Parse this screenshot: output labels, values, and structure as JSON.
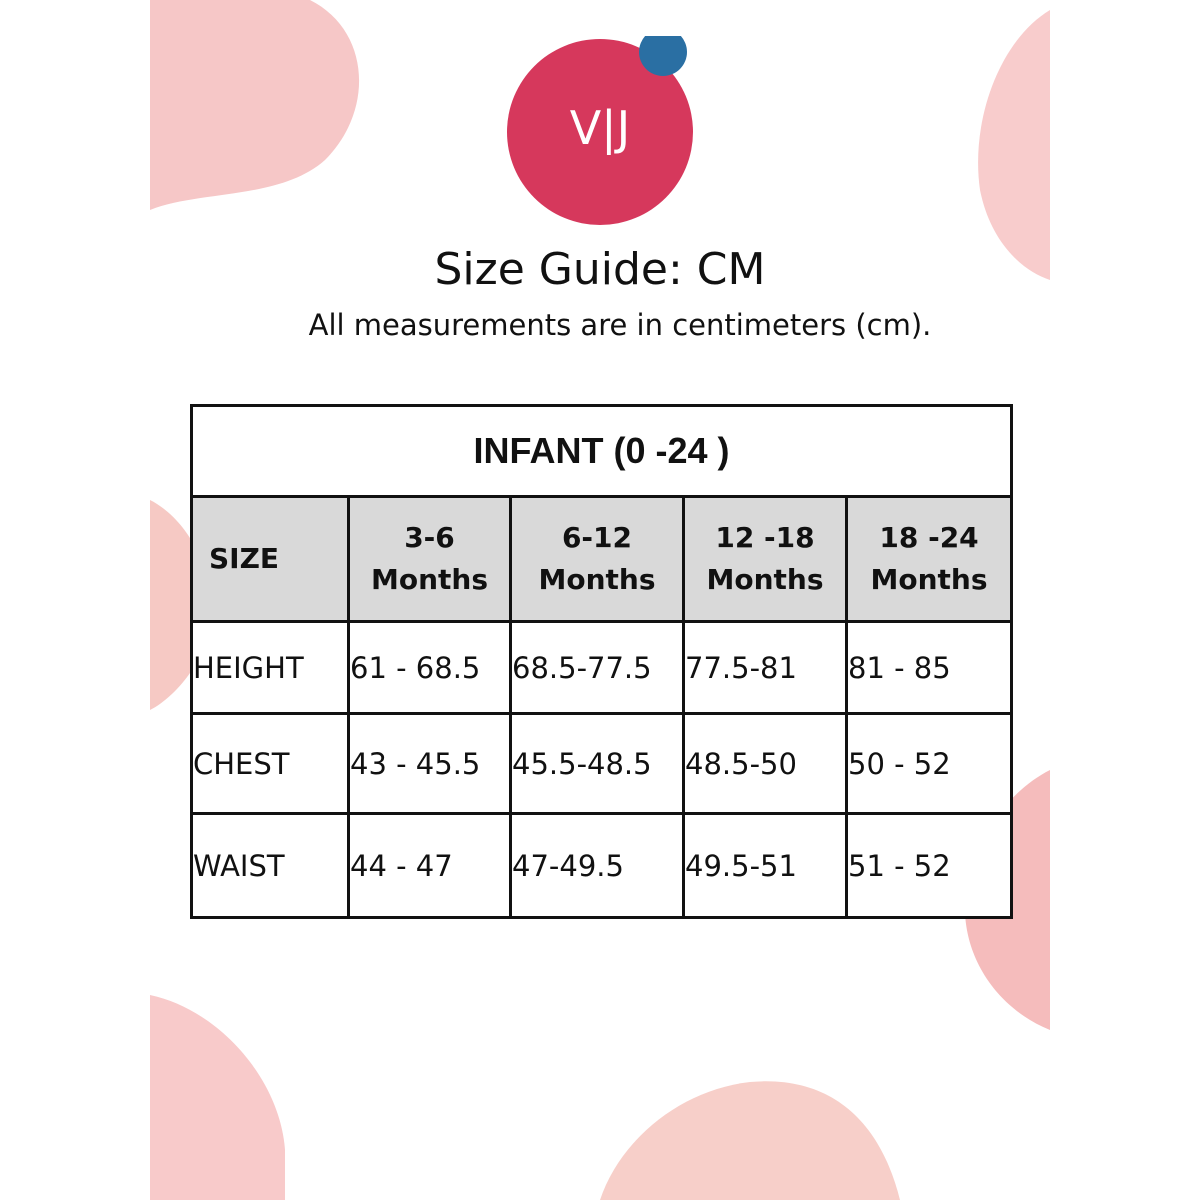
{
  "brand": {
    "logo_text": "V|J",
    "logo_color": "#d6385c",
    "dot_color": "#2a6fa3"
  },
  "header": {
    "title": "Size Guide: CM",
    "subtitle": "All measurements are in centimeters (cm)."
  },
  "table": {
    "caption": "INFANT (0 -24 )",
    "columns": [
      {
        "line1": "SIZE",
        "line2": ""
      },
      {
        "line1": "3-6",
        "line2": "Months"
      },
      {
        "line1": "6-12",
        "line2": "Months"
      },
      {
        "line1": "12 -18",
        "line2": "Months"
      },
      {
        "line1": "18 -24",
        "line2": "Months"
      }
    ],
    "rows": [
      {
        "label": "HEIGHT",
        "values": [
          "61 - 68.5",
          "68.5-77.5",
          "77.5-81",
          "81 - 85"
        ]
      },
      {
        "label": "CHEST",
        "values": [
          "43 - 45.5",
          "45.5-48.5",
          "48.5-50",
          "50 - 52"
        ]
      },
      {
        "label": "WAIST",
        "values": [
          "44 - 47",
          "47-49.5",
          "49.5-51",
          "51 - 52"
        ]
      }
    ]
  },
  "colors": {
    "blob": "#f6c7c7",
    "header_bg": "#d9d9d9",
    "border": "#111111"
  }
}
